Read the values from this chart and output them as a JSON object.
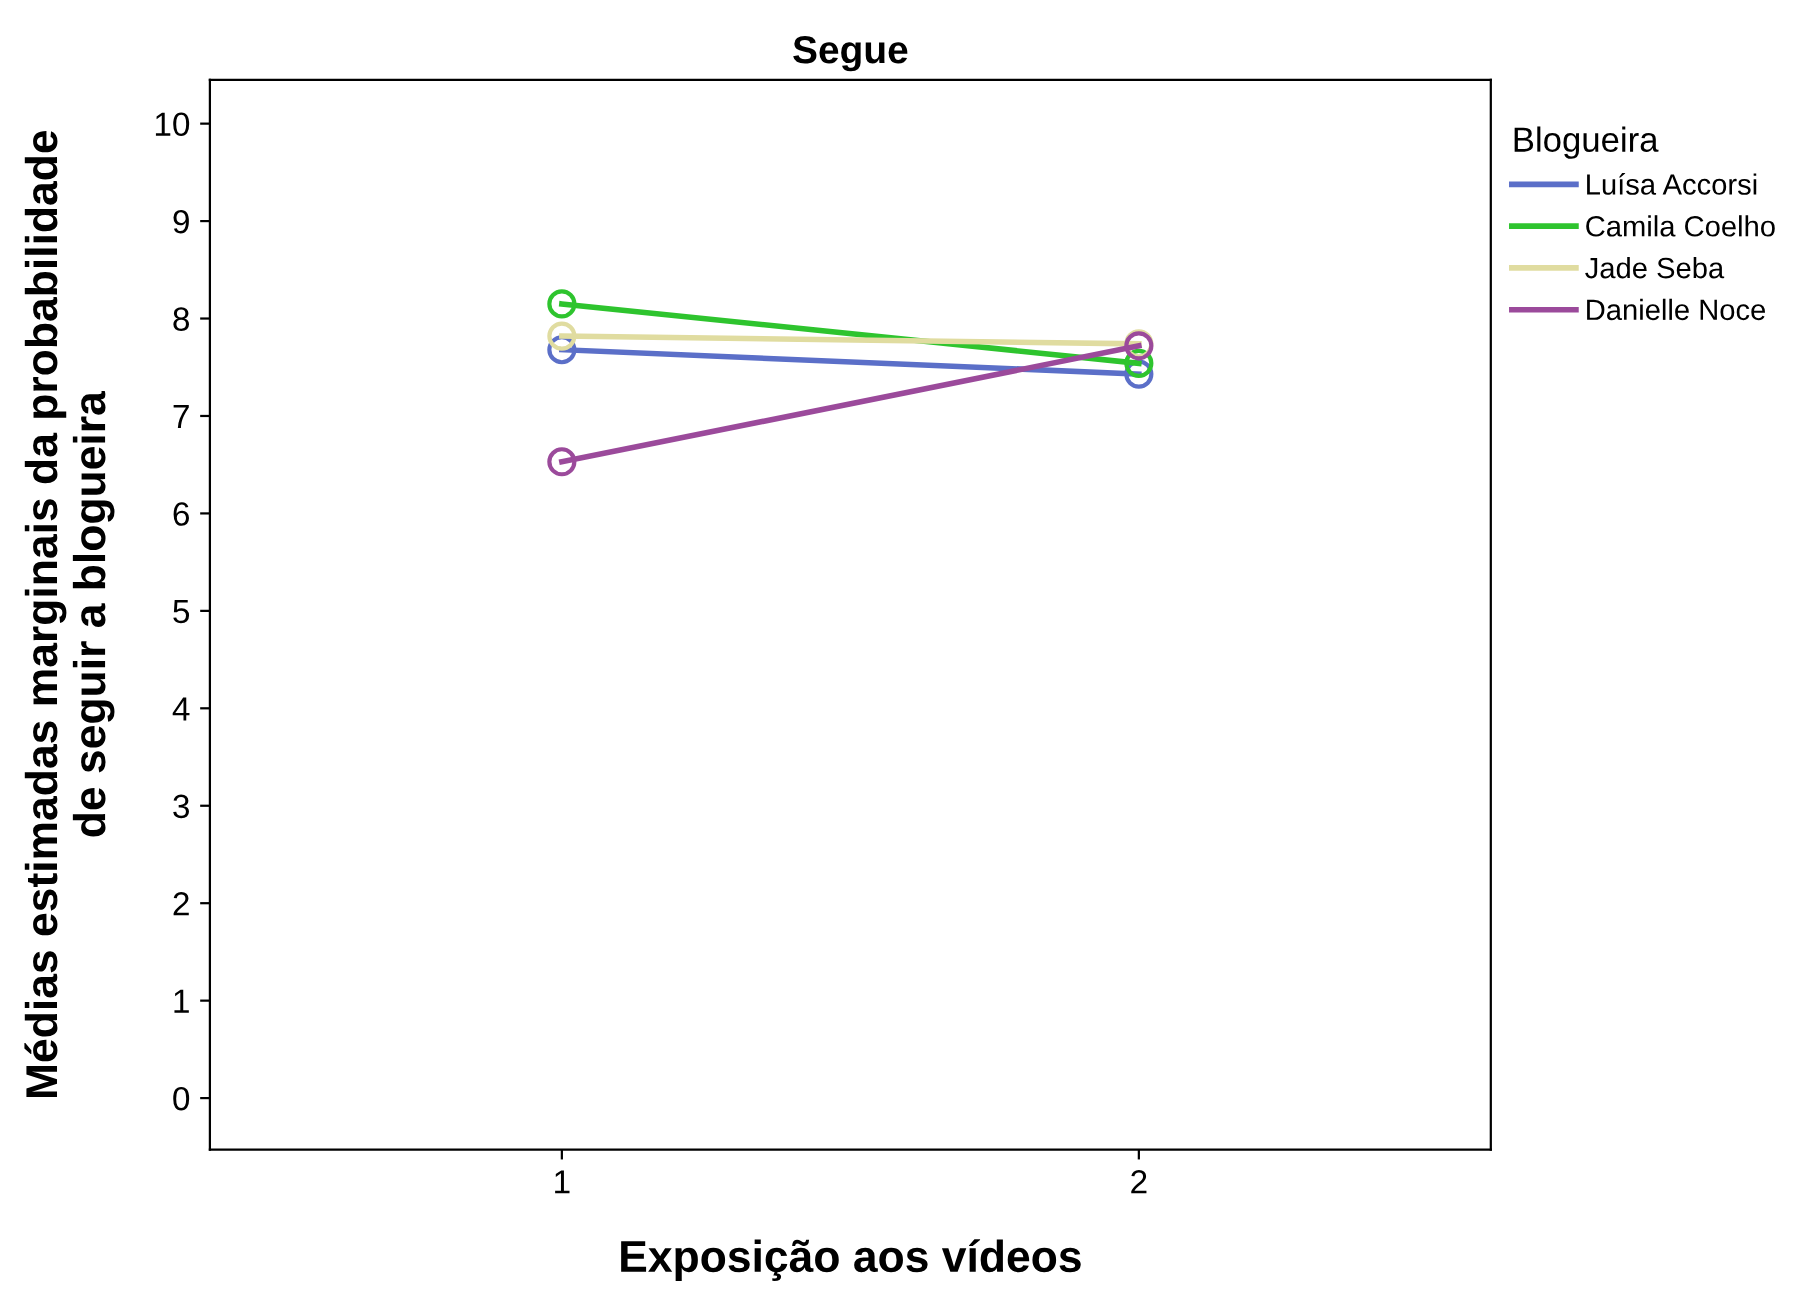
{
  "chart_data": {
    "type": "line",
    "title": "Segue",
    "xlabel": "Exposição aos vídeos",
    "ylabel": "Médias estimadas marginais da probabilidade\nde seguir a blogueira",
    "legend_title": "Blogueira",
    "x": [
      1,
      2
    ],
    "series": [
      {
        "name": "Luísa Accorsi",
        "color": "#5b6fc8",
        "values": [
          7.68,
          7.43
        ]
      },
      {
        "name": "Camila Coelho",
        "color": "#2ec42e",
        "values": [
          8.15,
          7.54
        ]
      },
      {
        "name": "Jade Seba",
        "color": "#e0dca0",
        "values": [
          7.82,
          7.74
        ]
      },
      {
        "name": "Danielle Noce",
        "color": "#9b4a9b",
        "values": [
          6.53,
          7.72
        ]
      }
    ],
    "xlim": [
      0.39,
      2.61
    ],
    "xticks": [
      1,
      2
    ],
    "ylim": [
      -0.53,
      10.45
    ],
    "yticks": [
      0,
      1,
      2,
      3,
      4,
      5,
      6,
      7,
      8,
      9,
      10
    ],
    "grid": false,
    "legend": "right",
    "marker": "circle",
    "line_style": "solid"
  }
}
